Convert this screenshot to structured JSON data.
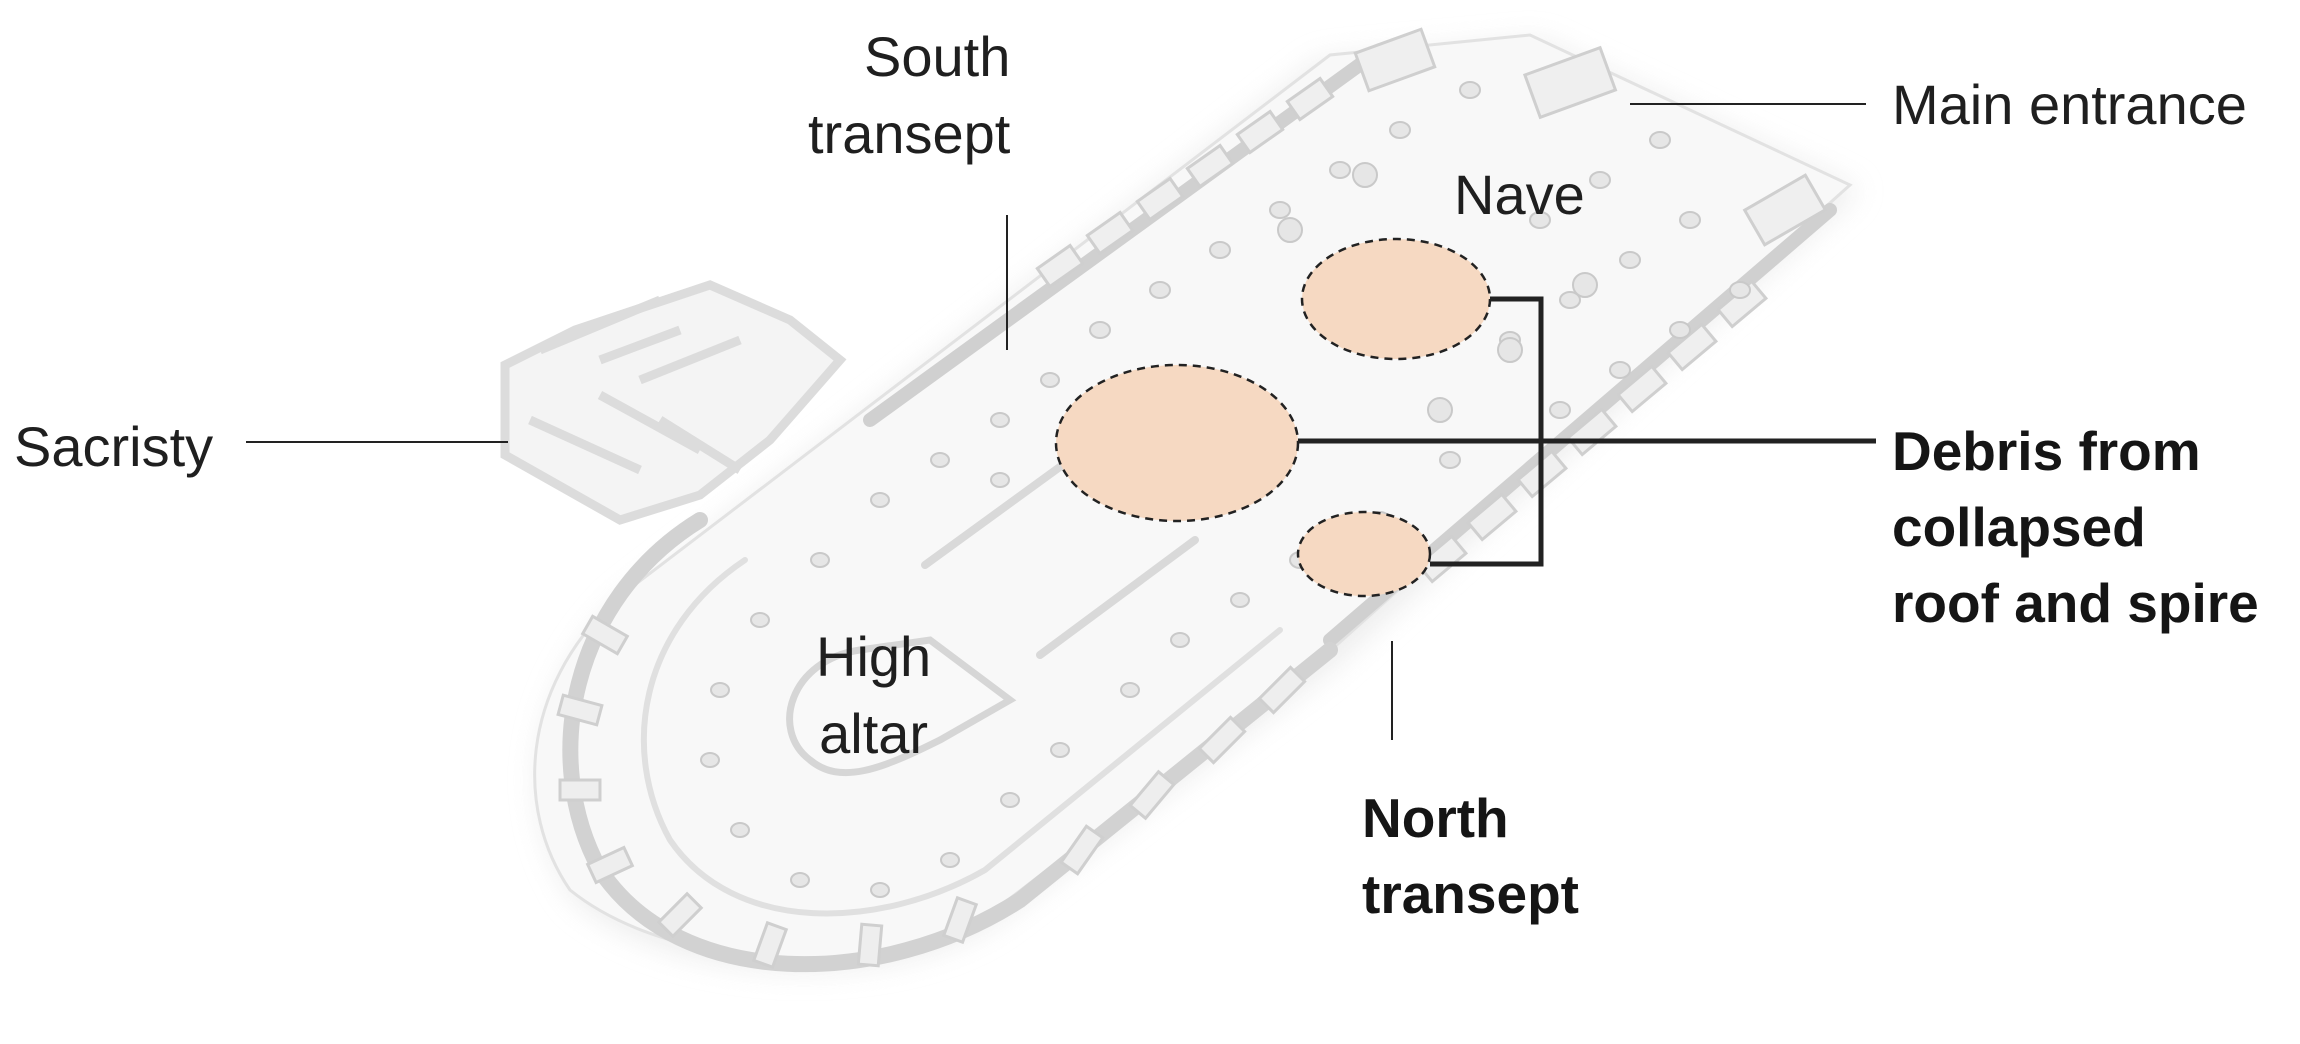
{
  "diagram": {
    "subject": "Cathedral floor plan",
    "labels": {
      "south_transept": [
        "South",
        "transept"
      ],
      "main_entrance": "Main entrance",
      "nave": "Nave",
      "sacristy": "Sacristy",
      "debris": [
        "Debris from",
        "collapsed",
        "roof and spire"
      ],
      "high_altar": [
        "High",
        "altar"
      ],
      "north_transept": [
        "North",
        "transept"
      ]
    },
    "colors": {
      "debris_fill": "#f6d9c2",
      "leader_line": "#222222",
      "structure": "#f2f2f2",
      "structure_edge": "#d4d4d4"
    }
  }
}
